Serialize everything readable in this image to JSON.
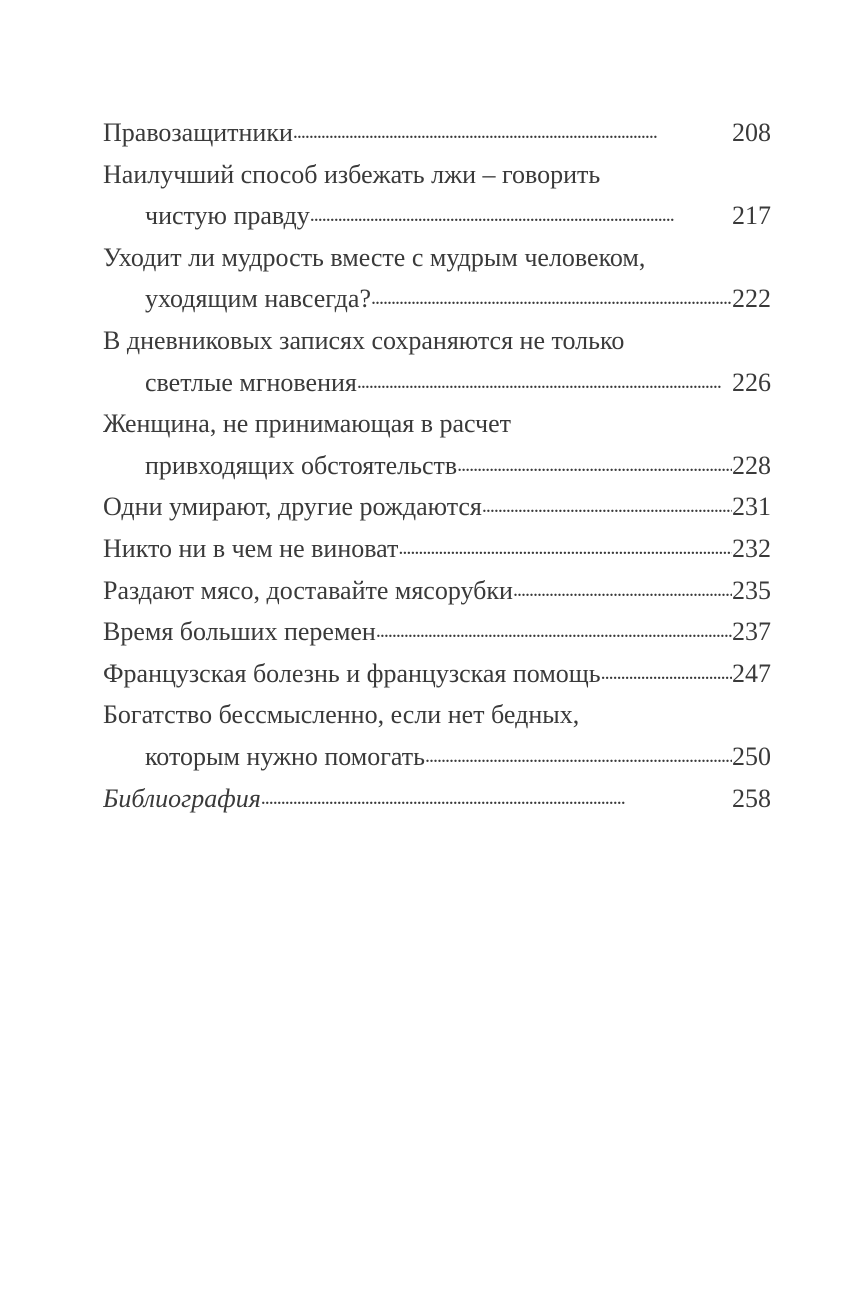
{
  "toc": {
    "entries": [
      {
        "lines": [
          "Правозащитники"
        ],
        "page": "208"
      },
      {
        "lines": [
          "Наилучший способ избежать лжи – говорить",
          "чистую правду"
        ],
        "page": "217"
      },
      {
        "lines": [
          "Уходит ли мудрость вместе с мудрым человеком,",
          "уходящим навсегда?"
        ],
        "page": "222"
      },
      {
        "lines": [
          "В дневниковых записях сохраняются не только",
          "светлые мгновения"
        ],
        "page": "226"
      },
      {
        "lines": [
          "Женщина, не принимающая в расчет",
          "привходящих обстоятельств"
        ],
        "page": "228"
      },
      {
        "lines": [
          "Одни умирают, другие рождаются"
        ],
        "page": "231"
      },
      {
        "lines": [
          "Никто ни в чем не виноват"
        ],
        "page": "232"
      },
      {
        "lines": [
          "Раздают мясо, доставайте мясорубки"
        ],
        "page": "235"
      },
      {
        "lines": [
          "Время больших перемен"
        ],
        "page": "237"
      },
      {
        "lines": [
          "Французская болезнь и французская помощь"
        ],
        "page": "247"
      },
      {
        "lines": [
          "Богатство бессмысленно, если нет бедных,",
          "которым нужно помогать"
        ],
        "page": "250"
      },
      {
        "lines": [
          "Библиография"
        ],
        "page": "258",
        "italic": true
      }
    ]
  }
}
